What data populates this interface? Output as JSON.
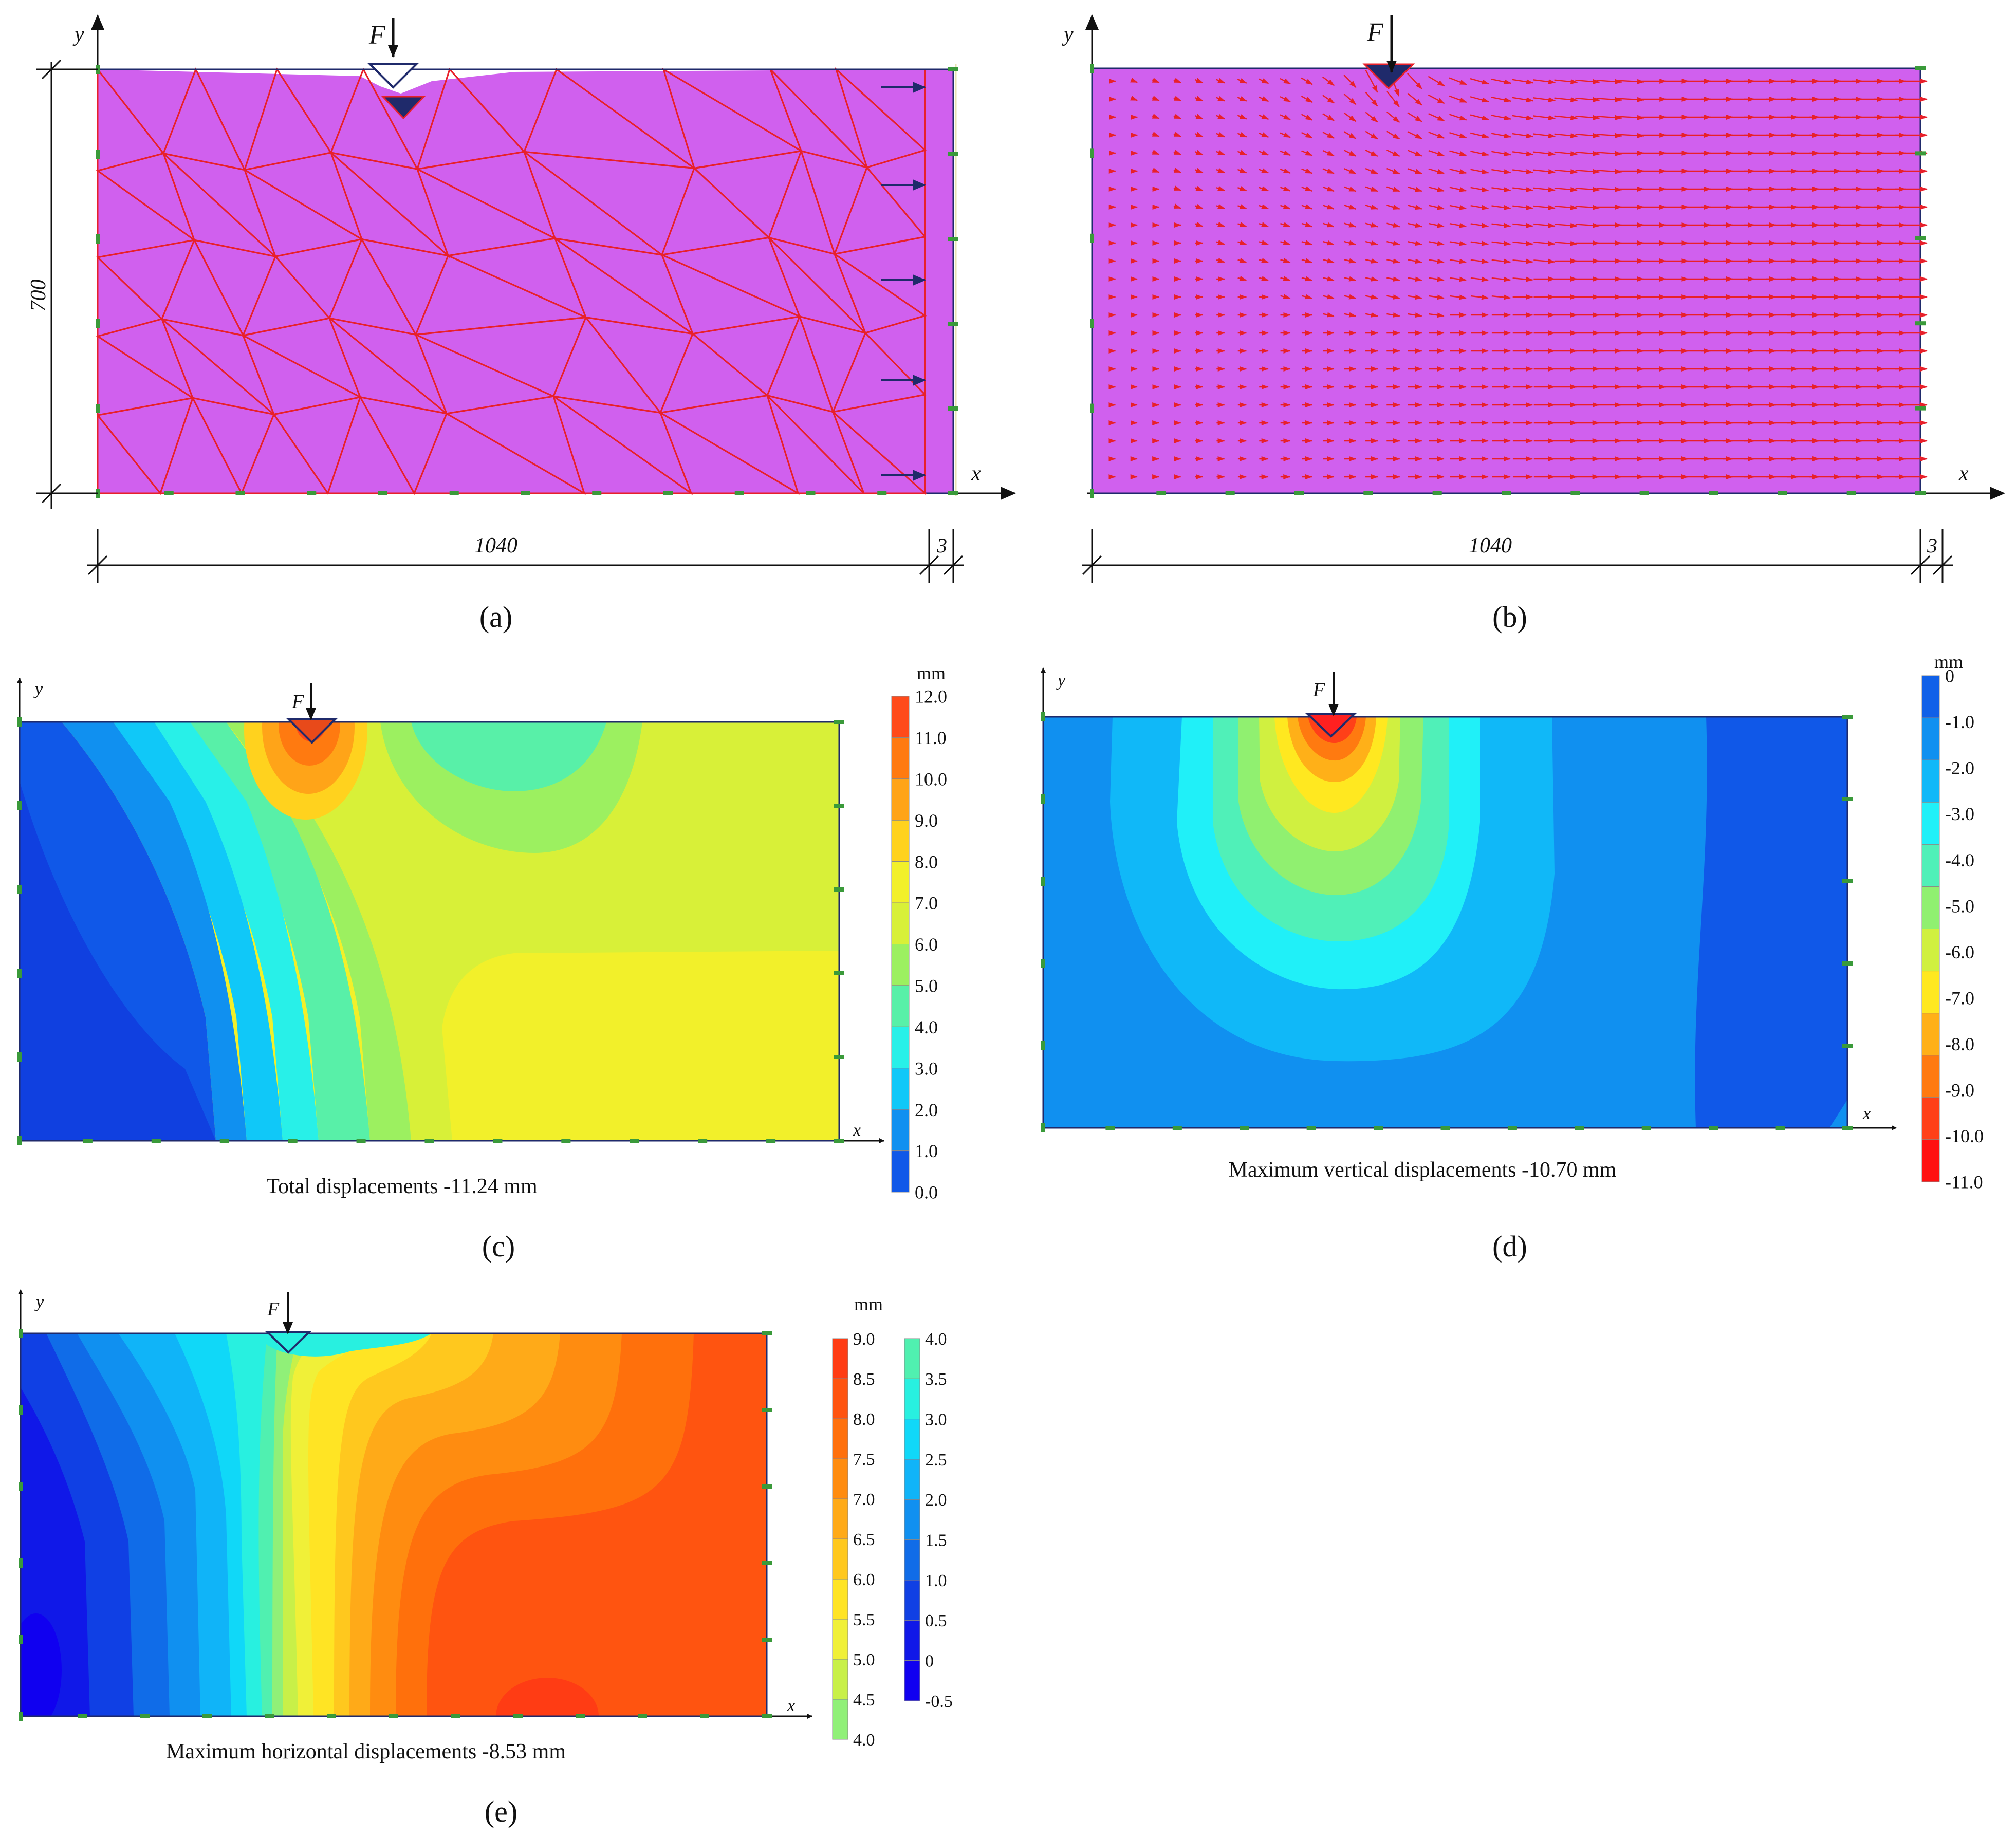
{
  "symbols": {
    "force": "F",
    "x_axis": "x",
    "y_axis": "y"
  },
  "unit": "mm",
  "colors": {
    "soil": "#d060ee",
    "mesh": "#e8202a",
    "load": "#1f2a6b",
    "arrow": "#e8202a"
  },
  "panels": {
    "a": {
      "label": "(a)",
      "dim_height": "700",
      "dim_width": "1040",
      "dim_gap": "3"
    },
    "b": {
      "label": "(b)",
      "dim_width": "1040",
      "dim_gap": "3"
    },
    "c": {
      "label": "(c)",
      "caption": "Total displacements -11.24 mm",
      "scale_labels": [
        "12.0",
        "11.0",
        "10.0",
        "9.0",
        "8.0",
        "7.0",
        "6.0",
        "5.0",
        "4.0",
        "3.0",
        "2.0",
        "1.0",
        "0.0"
      ],
      "scale_colors": [
        "#ff4a1a",
        "#ff7a10",
        "#ffa418",
        "#ffd21e",
        "#f2f02a",
        "#d8f038",
        "#9cf060",
        "#58f0a8",
        "#28f0e8",
        "#10c8f8",
        "#1090f0",
        "#1058e8"
      ]
    },
    "d": {
      "label": "(d)",
      "caption": "Maximum vertical displacements -10.70 mm",
      "scale_labels": [
        "0",
        "-1.0",
        "-2.0",
        "-3.0",
        "-4.0",
        "-5.0",
        "-6.0",
        "-7.0",
        "-8.0",
        "-9.0",
        "-10.0",
        "-11.0"
      ],
      "scale_colors": [
        "#1060e8",
        "#1090f0",
        "#10b8f8",
        "#20f0f8",
        "#50f0b8",
        "#90f070",
        "#d0f040",
        "#ffe820",
        "#ffb018",
        "#ff7a10",
        "#ff4018",
        "#ff1010"
      ]
    },
    "e": {
      "label": "(e)",
      "caption": "Maximum horizontal displacements -8.53 mm",
      "scale1_labels": [
        "9.0",
        "8.5",
        "8.0",
        "7.5",
        "7.0",
        "6.5",
        "6.0",
        "5.5",
        "5.0",
        "4.5",
        "4.0"
      ],
      "scale1_colors": [
        "#ff3c14",
        "#ff5410",
        "#ff700c",
        "#ff8c10",
        "#ffaa18",
        "#ffc81e",
        "#ffe424",
        "#f0f038",
        "#c8f048",
        "#90f078"
      ],
      "scale2_labels": [
        "4.0",
        "3.5",
        "3.0",
        "2.5",
        "2.0",
        "1.5",
        "1.0",
        "0.5",
        "0",
        "-0.5"
      ],
      "scale2_colors": [
        "#50f0b0",
        "#28f0e0",
        "#10d8f8",
        "#10b4f8",
        "#1090f0",
        "#106ce8",
        "#1040e4",
        "#1018e8",
        "#1000f0"
      ]
    }
  }
}
